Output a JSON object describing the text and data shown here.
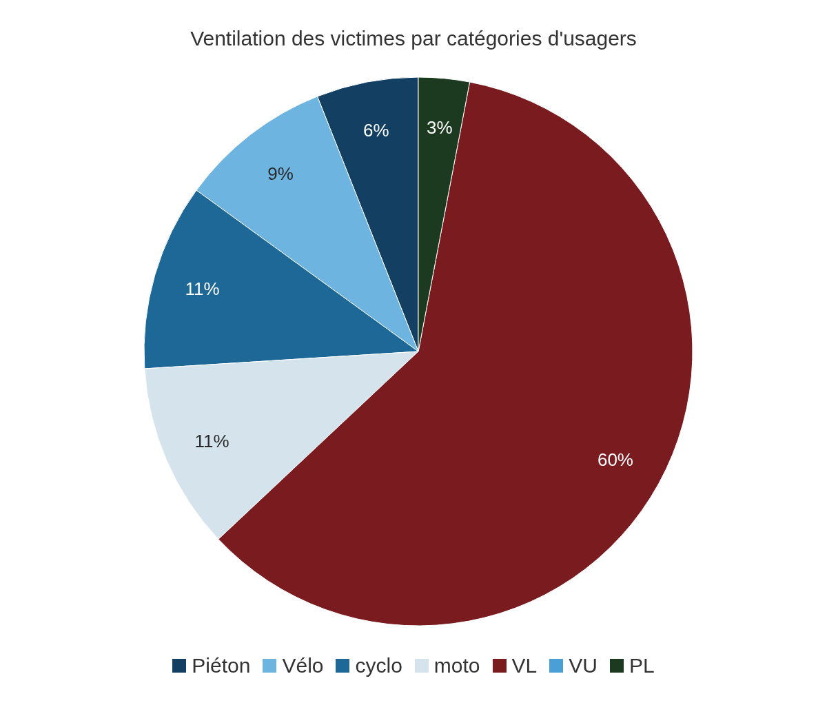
{
  "chart_data": {
    "type": "pie",
    "title": "Ventilation des victimes par catégories d'usagers",
    "categories": [
      "Piéton",
      "Vélo",
      "cyclo",
      "moto",
      "VL",
      "VU",
      "PL"
    ],
    "values": [
      6,
      9,
      11,
      11,
      60,
      0,
      3
    ],
    "value_labels": [
      "6%",
      "9%",
      "11%",
      "11%",
      "60%",
      null,
      "3%"
    ],
    "colors": [
      "#123f62",
      "#6db4e0",
      "#1d6896",
      "#d5e4ec",
      "#7a1b20",
      "#4a9fd6",
      "#1c3a20"
    ],
    "legend": "bottom"
  }
}
